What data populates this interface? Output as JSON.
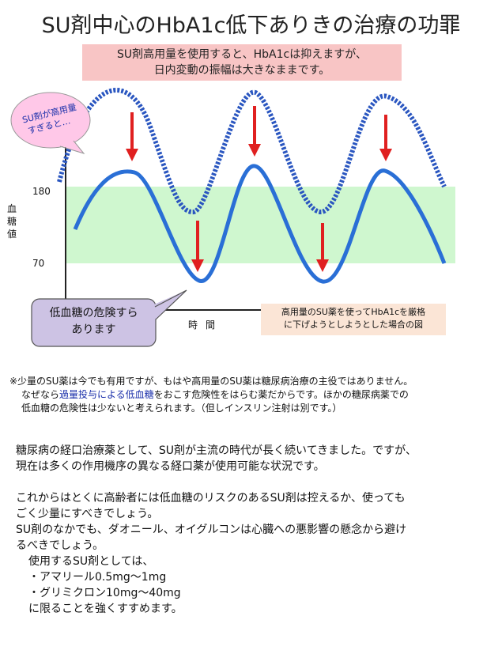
{
  "title": "SU剤中心のHbA1c低下ありきの治療の功罪",
  "banner": {
    "line1": "SU剤高用量を使用すると、HbA1cは抑えますが、",
    "line2": "日内変動の振幅は大きなままです。"
  },
  "bubble_text": {
    "line1": "SU剤が高用量",
    "line2": "すぎると…"
  },
  "chart": {
    "ylabel": "血糖値",
    "y_high_label": "180",
    "y_low_label": "70",
    "xlabel": "時間",
    "target_range": [
      70,
      180
    ],
    "colors": {
      "band": "#cff7cf",
      "curve": "#2a6fd6",
      "dotted": "#2a56c0",
      "arrow": "#e02020",
      "axis": "#222222"
    }
  },
  "warning_box": {
    "line1": "低血糖の危険すら",
    "line2": "あります"
  },
  "caption": {
    "line1": "高用量のSU薬を使ってHbA1cを厳格",
    "line2": "に下げようとしようとした場合の図"
  },
  "note": {
    "line1": "※少量のSU薬は今でも有用ですが、もはや高用量のSU薬は糖尿病治療の主役ではありません。",
    "line2_pre": "なぜなら",
    "line2_hl": "過量投与による低血糖",
    "line2_post": "をおこす危険性をはらむ薬だからです。ほかの糖尿病薬での",
    "line3": "低血糖の危険性は少ないと考えられます。（但しインスリン注射は別です。）"
  },
  "body": {
    "p1_l1": "糖尿病の経口治療薬として、SU剤が主流の時代が長く続いてきました。ですが、",
    "p1_l2": "現在は多くの作用機序の異なる経口薬が使用可能な状況です。",
    "p2_l1": "これからはとくに高齢者には低血糖のリスクのあるSU剤は控えるか、使っても",
    "p2_l2": "ごく少量にすべきでしょう。",
    "p3_l1": "SU剤のなかでも、ダオニール、オイグルコンは心臓への悪影響の懸念から避け",
    "p3_l2": "るべきでしょう。",
    "p4_l1": "使用するSU剤としては、",
    "p4_l2": "・アマリール0.5mg～1mg",
    "p4_l3": "・グリミクロン10mg～40mg",
    "p4_l4": "に限ることを強くすすめます。"
  }
}
